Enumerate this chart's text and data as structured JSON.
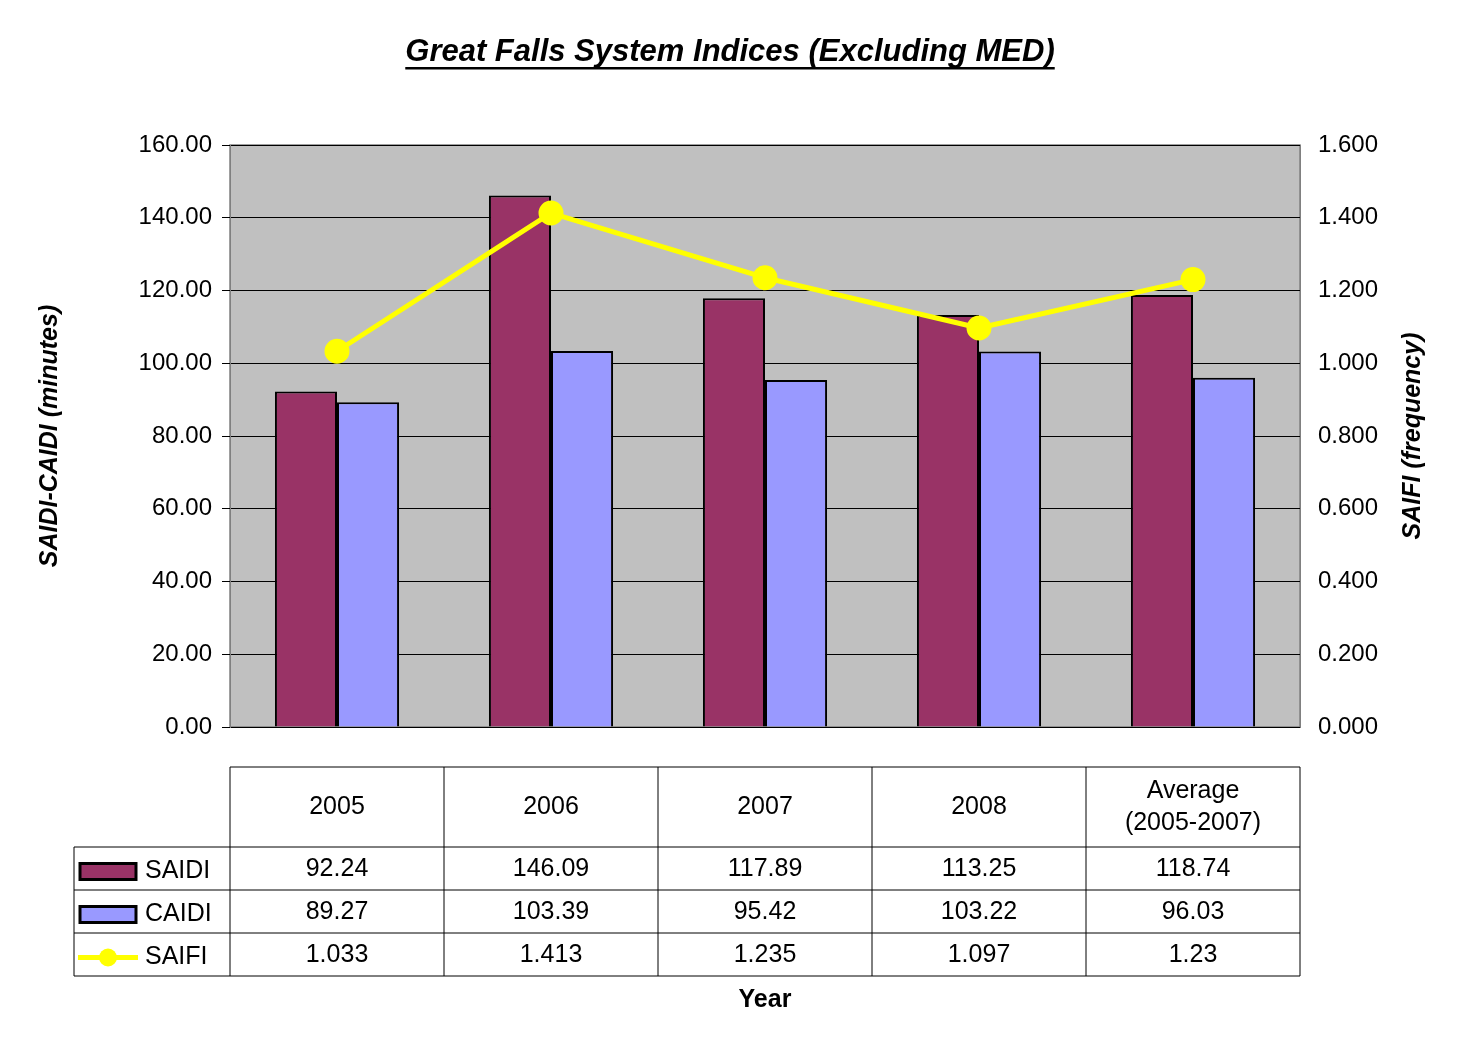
{
  "chart_data": {
    "type": "bar",
    "title": "Great Falls System Indices (Excluding MED)",
    "annotations": [
      "Year"
    ],
    "ylabel": "SAIDI-CAIDI (minutes)",
    "y2label": "SAIFI (frequency)",
    "categories": [
      "2005",
      "2006",
      "2007",
      "2008",
      "Average (2005-2007)"
    ],
    "series": [
      {
        "name": "SAIDI",
        "color": "#993366",
        "values": [
          92.24,
          146.09,
          117.89,
          113.25,
          118.74
        ]
      },
      {
        "name": "CAIDI",
        "color": "#9999ff",
        "values": [
          89.27,
          103.39,
          95.42,
          103.22,
          96.03
        ]
      },
      {
        "name": "SAIFI",
        "type": "line",
        "axis": "y2",
        "color": "#ffff00",
        "values": [
          1.033,
          1.413,
          1.235,
          1.097,
          1.23
        ]
      }
    ],
    "ylim": [
      0,
      160
    ],
    "yticks": [
      {
        "value": 0,
        "label": "0.00"
      },
      {
        "value": 20,
        "label": "20.00"
      },
      {
        "value": 40,
        "label": "40.00"
      },
      {
        "value": 60,
        "label": "60.00"
      },
      {
        "value": 80,
        "label": "80.00"
      },
      {
        "value": 100,
        "label": "100.00"
      },
      {
        "value": 120,
        "label": "120.00"
      },
      {
        "value": 140,
        "label": "140.00"
      },
      {
        "value": 160,
        "label": "160.00"
      }
    ],
    "y2lim": [
      0,
      1.6
    ],
    "y2ticks": [
      {
        "value": 0,
        "label": "0.000"
      },
      {
        "value": 0.2,
        "label": "0.200"
      },
      {
        "value": 0.4,
        "label": "0.400"
      },
      {
        "value": 0.6,
        "label": "0.600"
      },
      {
        "value": 0.8,
        "label": "0.800"
      },
      {
        "value": 1,
        "label": "1.000"
      },
      {
        "value": 1.2,
        "label": "1.200"
      },
      {
        "value": 1.4,
        "label": "1.400"
      },
      {
        "value": 1.6,
        "label": "1.600"
      }
    ],
    "grid": "y",
    "legend": "bottom left",
    "marker": "circle",
    "data_labels": true
  }
}
